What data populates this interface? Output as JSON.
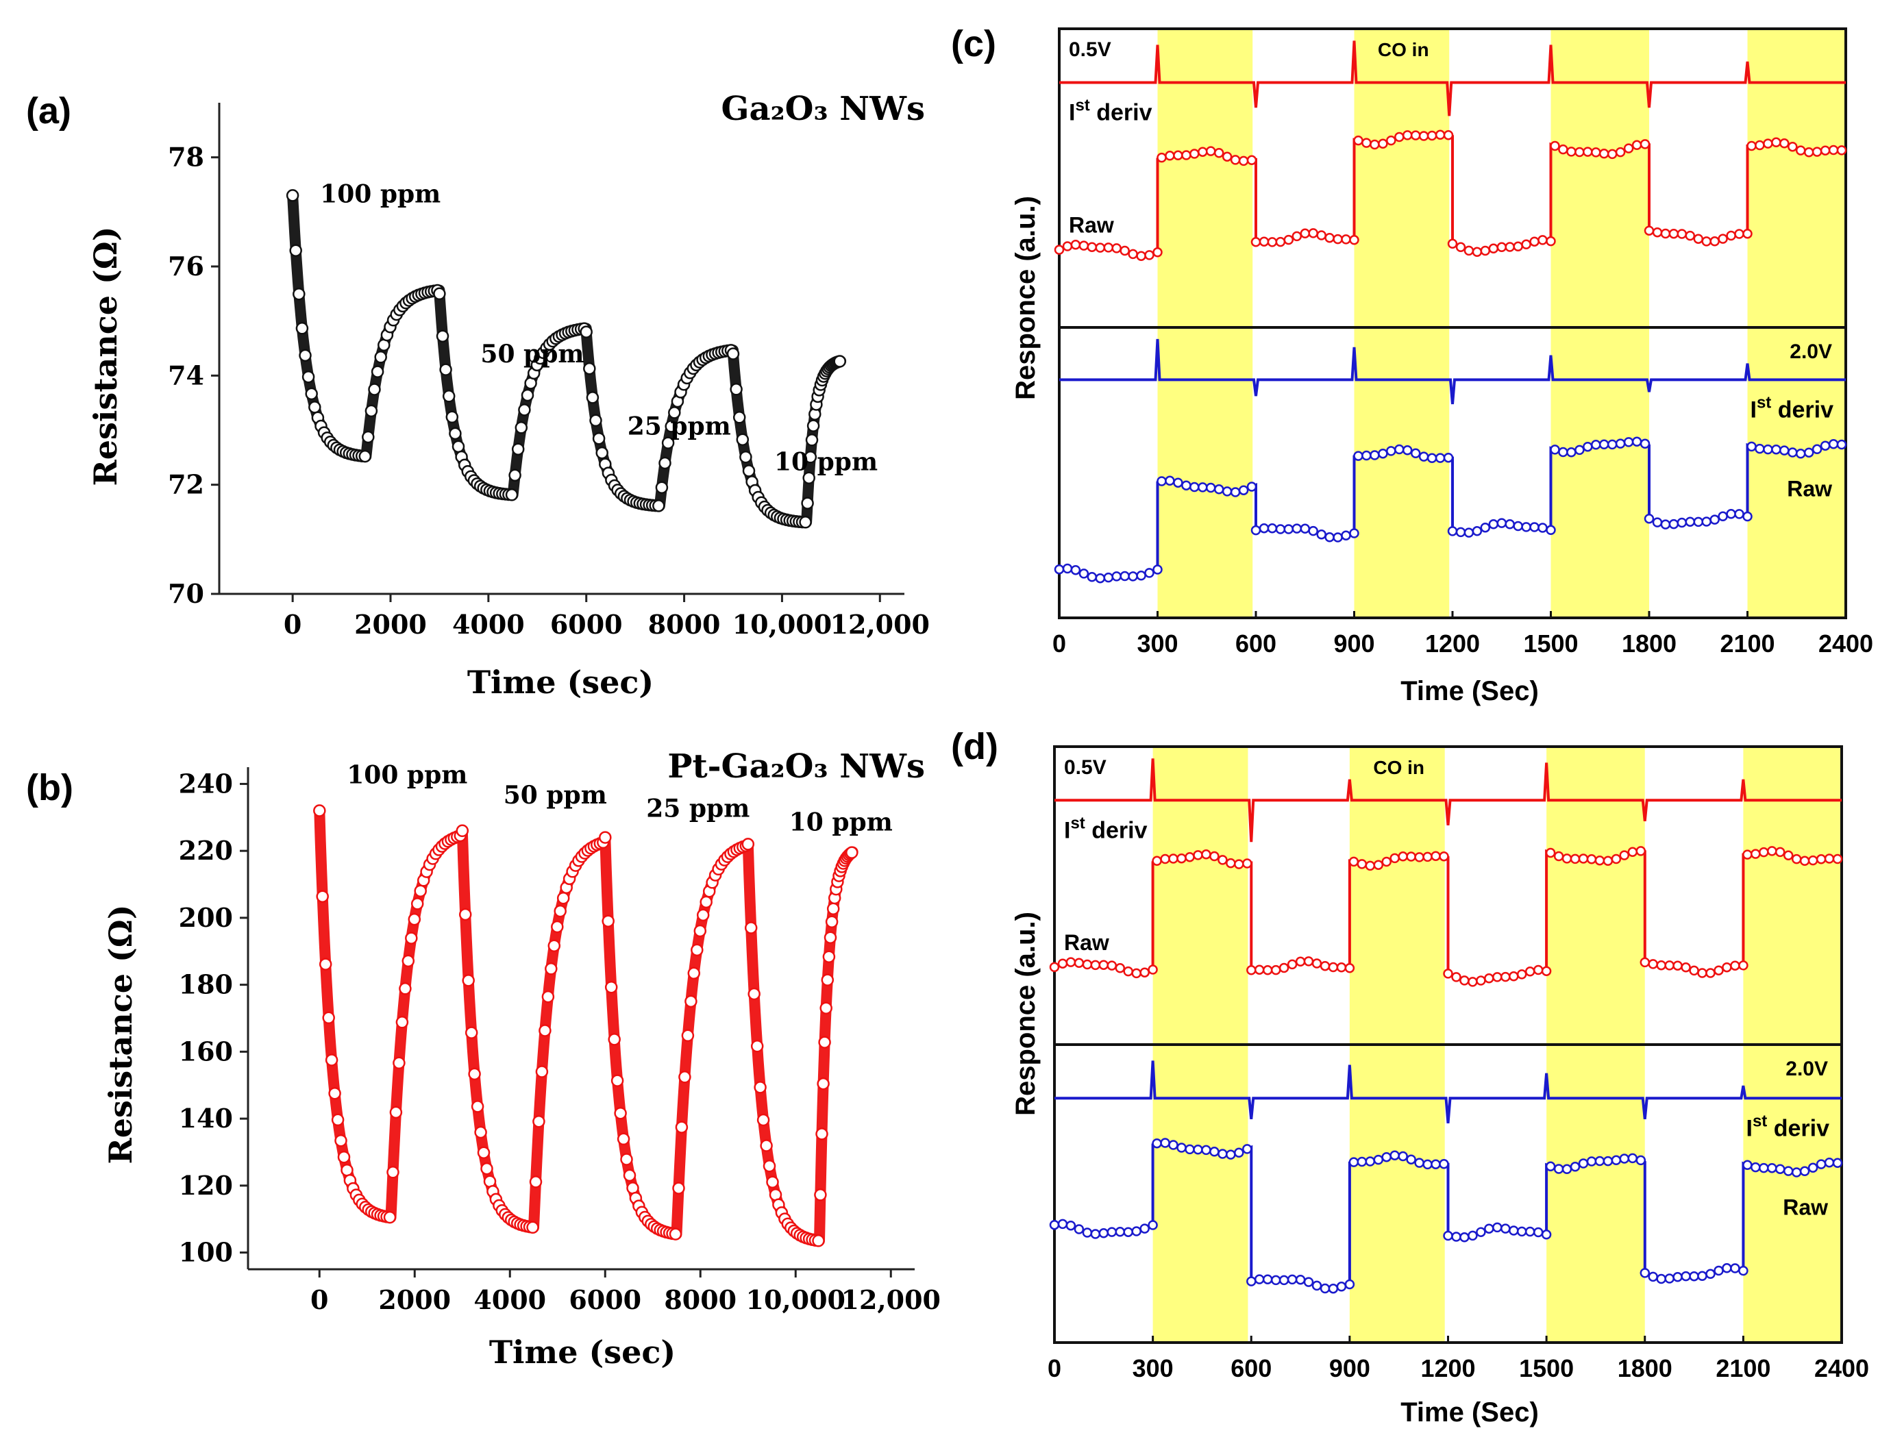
{
  "panels": {
    "a": {
      "letter": "(a)",
      "title": "Ga₂O₃ NWs",
      "xlabel": "Time (sec)",
      "ylabel": "Resistance (Ω)"
    },
    "b": {
      "letter": "(b)",
      "title": "Pt-Ga₂O₃ NWs",
      "xlabel": "Time (sec)",
      "ylabel": "Resistance (Ω)"
    },
    "c": {
      "letter": "(c)",
      "xlabel": "Time (Sec)",
      "ylabel": "Responce (a.u.)"
    },
    "d": {
      "letter": "(d)",
      "xlabel": "Time (Sec)",
      "ylabel": "Responce (a.u.)"
    }
  },
  "colors": {
    "black": "#111111",
    "red": "#ee1111",
    "blue": "#1a1acc",
    "yellow": "#ffff80"
  },
  "chart_data": [
    {
      "id": "a",
      "type": "line",
      "title": "Ga₂O₃ NWs",
      "xlabel": "Time (sec)",
      "ylabel": "Resistance (Ω)",
      "xlim": [
        -1500,
        12500
      ],
      "ylim": [
        70,
        79
      ],
      "xticks": [
        0,
        2000,
        4000,
        6000,
        8000,
        10000,
        12000
      ],
      "xtick_labels": [
        "0",
        "2000",
        "4000",
        "6000",
        "8000",
        "10,000",
        "12,000"
      ],
      "yticks": [
        70,
        72,
        74,
        76,
        78
      ],
      "ytick_labels": [
        "70",
        "72",
        "74",
        "76",
        "78"
      ],
      "cycles": [
        {
          "on": 0,
          "off": 1500,
          "start": 77.3,
          "floor": 72.5,
          "end": 75.6,
          "label": "100 ppm"
        },
        {
          "on": 3000,
          "off": 4500,
          "start": 75.5,
          "floor": 71.8,
          "end": 74.9,
          "label": "50 ppm"
        },
        {
          "on": 6000,
          "off": 7500,
          "start": 74.8,
          "floor": 71.6,
          "end": 74.5,
          "label": "25 ppm"
        },
        {
          "on": 9000,
          "off": 10500,
          "start": 74.4,
          "floor": 71.3,
          "end": 74.3,
          "label": "10 ppm"
        }
      ],
      "recovery_end": 11200
    },
    {
      "id": "b",
      "type": "line",
      "title": "Pt-Ga₂O₃ NWs",
      "xlabel": "Time (sec)",
      "ylabel": "Resistance (Ω)",
      "xlim": [
        -1500,
        12500
      ],
      "ylim": [
        95,
        245
      ],
      "xticks": [
        0,
        2000,
        4000,
        6000,
        8000,
        10000,
        12000
      ],
      "xtick_labels": [
        "0",
        "2000",
        "4000",
        "6000",
        "8000",
        "10,000",
        "12,000"
      ],
      "yticks": [
        100,
        120,
        140,
        160,
        180,
        200,
        220,
        240
      ],
      "ytick_labels": [
        "100",
        "120",
        "140",
        "160",
        "180",
        "200",
        "220",
        "240"
      ],
      "cycles": [
        {
          "on": 0,
          "off": 1500,
          "start": 232,
          "floor": 110,
          "end": 226,
          "label": "100 ppm"
        },
        {
          "on": 3000,
          "off": 4500,
          "start": 226,
          "floor": 107,
          "end": 224,
          "label": "50 ppm"
        },
        {
          "on": 6000,
          "off": 7500,
          "start": 224,
          "floor": 105,
          "end": 223,
          "label": "25 ppm"
        },
        {
          "on": 9000,
          "off": 10500,
          "start": 222,
          "floor": 103,
          "end": 221,
          "label": "10 ppm"
        }
      ],
      "recovery_end": 11200
    },
    {
      "id": "c",
      "type": "line",
      "xlabel": "Time (Sec)",
      "ylabel": "Responce (a.u.)",
      "xlim": [
        0,
        2400
      ],
      "xticks": [
        0,
        300,
        600,
        900,
        1200,
        1500,
        1800,
        2100,
        2400
      ],
      "xtick_labels": [
        "0",
        "300",
        "600",
        "900",
        "1200",
        "1500",
        "1800",
        "2100",
        "2400"
      ],
      "co_in_intervals": [
        [
          300,
          590
        ],
        [
          900,
          1190
        ],
        [
          1500,
          1800
        ],
        [
          2100,
          2400
        ]
      ],
      "annotations": [
        "0.5V",
        "CO in",
        "2.0V"
      ],
      "deriv_label": [
        "I",
        "st",
        " deriv"
      ],
      "raw_label": "Raw",
      "sub_plots": [
        {
          "name": "0.5V",
          "color": "#ee1111",
          "deriv_spikes": [
            {
              "t": 300,
              "amp": 0.9
            },
            {
              "t": 600,
              "amp": -0.6
            },
            {
              "t": 900,
              "amp": 1.0
            },
            {
              "t": 1190,
              "amp": -0.8
            },
            {
              "t": 1500,
              "amp": 0.9
            },
            {
              "t": 1800,
              "amp": -0.6
            },
            {
              "t": 2100,
              "amp": 0.5
            }
          ],
          "raw_levels": [
            0.3,
            0.82,
            0.36,
            0.92,
            0.32,
            0.86,
            0.38,
            0.87
          ]
        },
        {
          "name": "2.0V",
          "color": "#1a1acc",
          "deriv_spikes": [
            {
              "t": 300,
              "amp": 1.0
            },
            {
              "t": 600,
              "amp": -0.4
            },
            {
              "t": 900,
              "amp": 0.8
            },
            {
              "t": 1200,
              "amp": -0.6
            },
            {
              "t": 1500,
              "amp": 0.6
            },
            {
              "t": 1800,
              "amp": -0.3
            },
            {
              "t": 2100,
              "amp": 0.4
            }
          ],
          "raw_levels": [
            0.12,
            0.62,
            0.36,
            0.8,
            0.38,
            0.85,
            0.43,
            0.84
          ]
        }
      ]
    },
    {
      "id": "d",
      "type": "line",
      "xlabel": "Time (Sec)",
      "ylabel": "Responce (a.u.)",
      "xlim": [
        0,
        2400
      ],
      "xticks": [
        0,
        300,
        600,
        900,
        1200,
        1500,
        1800,
        2100,
        2400
      ],
      "xtick_labels": [
        "0",
        "300",
        "600",
        "900",
        "1200",
        "1500",
        "1800",
        "2100",
        "2400"
      ],
      "co_in_intervals": [
        [
          300,
          590
        ],
        [
          900,
          1190
        ],
        [
          1500,
          1800
        ],
        [
          2100,
          2400
        ]
      ],
      "annotations": [
        "0.5V",
        "CO in",
        "2.0V"
      ],
      "deriv_label": [
        "I",
        "st",
        " deriv"
      ],
      "raw_label": "Raw",
      "sub_plots": [
        {
          "name": "0.5V",
          "color": "#ee1111",
          "deriv_spikes": [
            {
              "t": 300,
              "amp": 1.0
            },
            {
              "t": 600,
              "amp": -1.0
            },
            {
              "t": 900,
              "amp": 0.5
            },
            {
              "t": 1200,
              "amp": -0.6
            },
            {
              "t": 1500,
              "amp": 0.9
            },
            {
              "t": 1800,
              "amp": -0.5
            },
            {
              "t": 2100,
              "amp": 0.5
            }
          ],
          "raw_levels": [
            0.3,
            0.9,
            0.3,
            0.9,
            0.25,
            0.92,
            0.3,
            0.92
          ]
        },
        {
          "name": "2.0V",
          "color": "#1a1acc",
          "deriv_spikes": [
            {
              "t": 300,
              "amp": 0.9
            },
            {
              "t": 600,
              "amp": -0.5
            },
            {
              "t": 900,
              "amp": 0.8
            },
            {
              "t": 1200,
              "amp": -0.6
            },
            {
              "t": 1500,
              "amp": 0.6
            },
            {
              "t": 1800,
              "amp": -0.5
            },
            {
              "t": 2100,
              "amp": 0.3
            }
          ],
          "raw_levels": [
            0.5,
            0.95,
            0.2,
            0.88,
            0.48,
            0.87,
            0.25,
            0.85
          ]
        }
      ]
    }
  ]
}
